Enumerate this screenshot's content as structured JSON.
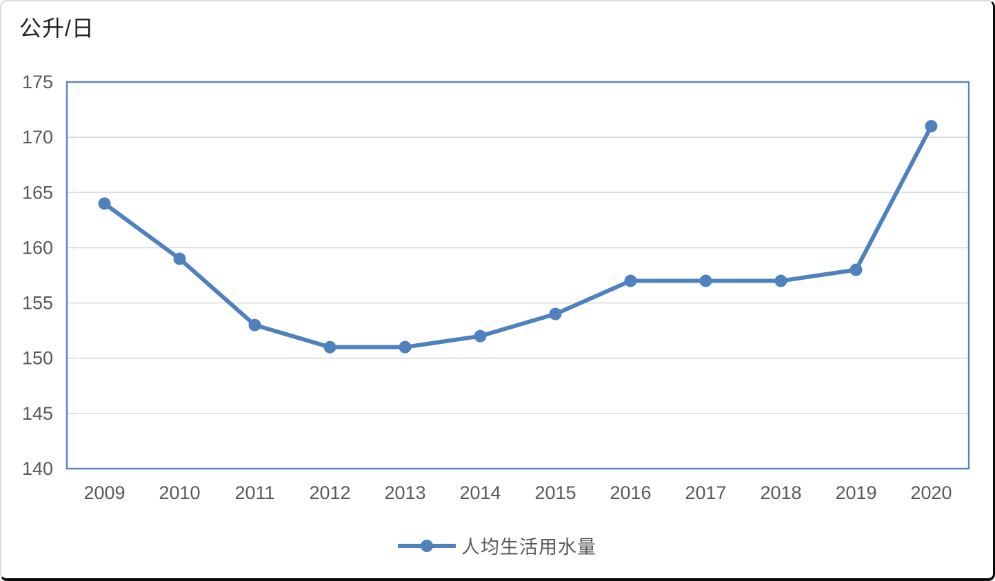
{
  "chart_data": {
    "type": "line",
    "title": "公升/日",
    "categories": [
      "2009",
      "2010",
      "2011",
      "2012",
      "2013",
      "2014",
      "2015",
      "2016",
      "2017",
      "2018",
      "2019",
      "2020"
    ],
    "series": [
      {
        "name": "人均生活用水量",
        "values": [
          164,
          159,
          153,
          151,
          151,
          152,
          154,
          157,
          157,
          157,
          158,
          171
        ]
      }
    ],
    "xlabel": "",
    "ylabel": "公升/日",
    "ylim": [
      140,
      175
    ],
    "ytick_step": 5,
    "yticks": [
      140,
      145,
      150,
      155,
      160,
      165,
      170,
      175
    ],
    "grid": "horizontal",
    "legend_position": "bottom"
  },
  "colors": {
    "series_line": "#4F81BD",
    "marker_fill": "#4F81BD",
    "plot_border": "#5B84BE",
    "gridline": "#D9D9D9",
    "tick_text": "#595959",
    "title_text": "#1F1F1F"
  }
}
